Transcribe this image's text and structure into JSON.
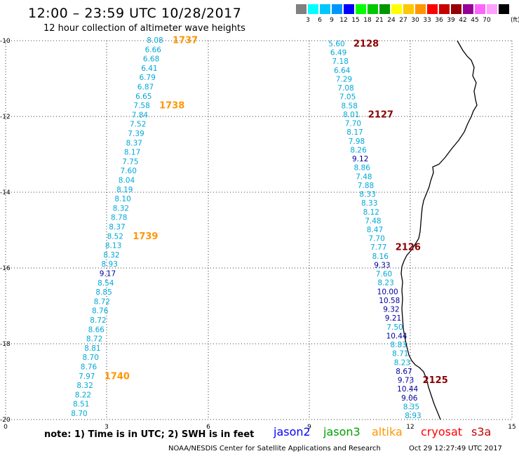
{
  "header": {
    "title": "12:00 – 23:59 UTC 10/28/2017",
    "subtitle": "12 hour collection of altimeter wave heights"
  },
  "legend": {
    "unit": "(ft)",
    "swatches": [
      {
        "color": "#808080",
        "label": ""
      },
      {
        "color": "#00ffff",
        "label": "3"
      },
      {
        "color": "#00c8ff",
        "label": "6"
      },
      {
        "color": "#0096ff",
        "label": "9"
      },
      {
        "color": "#0000ff",
        "label": "12"
      },
      {
        "color": "#00ff00",
        "label": "15"
      },
      {
        "color": "#00c800",
        "label": "18"
      },
      {
        "color": "#009600",
        "label": "21"
      },
      {
        "color": "#ffff00",
        "label": "24"
      },
      {
        "color": "#ffc800",
        "label": "27"
      },
      {
        "color": "#ff9600",
        "label": "30"
      },
      {
        "color": "#ff0000",
        "label": "33"
      },
      {
        "color": "#c80000",
        "label": "36"
      },
      {
        "color": "#960000",
        "label": "39"
      },
      {
        "color": "#960096",
        "label": "42"
      },
      {
        "color": "#ff64ff",
        "label": "45"
      },
      {
        "color": "#ffa0ff",
        "label": "70"
      },
      {
        "color": "#000000",
        "label": ""
      }
    ]
  },
  "axes": {
    "y_ticks": [
      "-10",
      "-12",
      "-14",
      "-16",
      "-18",
      "-20"
    ],
    "x_ticks": [
      "0",
      "3",
      "6",
      "9",
      "12",
      "15"
    ]
  },
  "colors": {
    "light_blue": "#00a8d8",
    "dark_blue": "#0000a0",
    "pass_orange": "#ff9600",
    "pass_dark_red": "#8b0000",
    "coast": "#000000"
  },
  "track_west": {
    "passes": [
      {
        "label": "1737",
        "color": "orange"
      },
      {
        "label": "1738",
        "color": "orange"
      },
      {
        "label": "1739",
        "color": "orange"
      },
      {
        "label": "1740",
        "color": "orange"
      }
    ],
    "values": [
      "8.08",
      "6.66",
      "6.68",
      "6.41",
      "6.79",
      "6.87",
      "6.65",
      "7.58",
      "7.84",
      "7.52",
      "7.39",
      "8.37",
      "8.17",
      "7.75",
      "7.60",
      "8.04",
      "8.19",
      "8.10",
      "8.32",
      "8.78",
      "8.37",
      "8.52",
      "8.13",
      "8.32",
      "8.93",
      "9.17",
      "8.54",
      "8.85",
      "8.72",
      "8.76",
      "8.72",
      "8.66",
      "8.72",
      "8.81",
      "8.70",
      "8.76",
      "7.97",
      "8.32",
      "8.22",
      "8.51",
      "8.70"
    ]
  },
  "track_east": {
    "passes": [
      {
        "label": "2128",
        "color": "darkred"
      },
      {
        "label": "2127",
        "color": "darkred"
      },
      {
        "label": "2126",
        "color": "darkred"
      },
      {
        "label": "2125",
        "color": "darkred"
      }
    ],
    "values": [
      "5.60",
      "6.49",
      "7.18",
      "6.64",
      "7.29",
      "7.08",
      "7.05",
      "8.58",
      "8.01",
      "7.70",
      "8.17",
      "7.98",
      "8.26",
      "9.12",
      "8.86",
      "7.48",
      "7.88",
      "8.33",
      "8.33",
      "8.12",
      "7.48",
      "8.47",
      "7.70",
      "7.77",
      "8.16",
      "9.33",
      "7.60",
      "8.23",
      "10.00",
      "10.58",
      "9.32",
      "9.21",
      "7.50",
      "10.44",
      "8.83",
      "8.71",
      "8.23",
      "8.67",
      "9.73",
      "10.44",
      "9.06",
      "8.35",
      "8.93"
    ]
  },
  "note": "note: 1) Time is in UTC; 2) SWH is in feet",
  "satellites": [
    {
      "name": "jason2",
      "color": "#0000ff"
    },
    {
      "name": "jason3",
      "color": "#00a000"
    },
    {
      "name": "altika",
      "color": "#ff9600"
    },
    {
      "name": "cryosat",
      "color": "#ff0000"
    },
    {
      "name": "s3a",
      "color": "#c80000"
    }
  ],
  "footer": {
    "left": "NOAA/NESDIS Center for Satellite Applications and Research",
    "right": "Oct 29 12:27:49 UTC 2017"
  }
}
